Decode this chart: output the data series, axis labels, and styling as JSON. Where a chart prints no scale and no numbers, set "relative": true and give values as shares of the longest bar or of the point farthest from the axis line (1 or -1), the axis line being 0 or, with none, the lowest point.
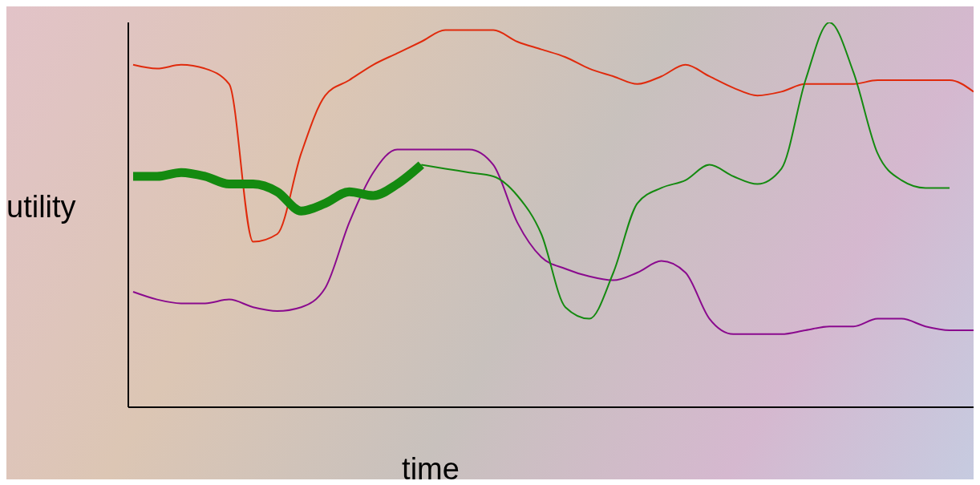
{
  "chart_data": {
    "type": "line",
    "relative": true,
    "xlabel": "time",
    "ylabel": "utility",
    "grid": false,
    "marker": "none",
    "line_style": "solid",
    "categories": [
      null,
      null,
      null,
      null,
      null,
      null,
      null,
      null,
      null,
      null,
      null,
      null,
      null,
      null,
      null,
      null,
      null,
      null,
      null,
      null,
      null,
      null,
      null,
      null,
      null,
      null,
      null,
      null,
      null,
      null,
      null,
      null,
      null,
      null,
      null,
      null
    ],
    "series": [
      {
        "color": "#e02a0c",
        "values": [
          0.89,
          0.88,
          0.89,
          0.88,
          0.84,
          0.43,
          0.45,
          0.66,
          0.81,
          0.85,
          0.89,
          0.92,
          0.95,
          0.98,
          0.98,
          0.98,
          0.95,
          0.93,
          0.91,
          0.88,
          0.86,
          0.84,
          0.86,
          0.89,
          0.86,
          0.83,
          0.81,
          0.82,
          0.84,
          0.84,
          0.84,
          0.85,
          0.85,
          0.85,
          0.85,
          0.82
        ]
      },
      {
        "color": "#8a0a8e",
        "values": [
          0.3,
          0.28,
          0.27,
          0.27,
          0.28,
          0.26,
          0.25,
          0.26,
          0.31,
          0.48,
          0.61,
          0.67,
          0.67,
          0.67,
          0.67,
          0.63,
          0.48,
          0.39,
          0.36,
          0.34,
          0.33,
          0.35,
          0.38,
          0.35,
          0.23,
          0.19,
          0.19,
          0.19,
          0.2,
          0.21,
          0.21,
          0.23,
          0.23,
          0.21,
          0.2,
          0.2
        ]
      },
      {
        "color": "#148a10",
        "values": [
          null,
          null,
          null,
          null,
          null,
          null,
          null,
          null,
          null,
          null,
          null,
          null,
          0.63,
          0.62,
          0.61,
          0.6,
          0.55,
          0.45,
          0.26,
          0.23,
          0.35,
          0.53,
          0.57,
          0.59,
          0.63,
          0.6,
          0.58,
          0.62,
          0.85,
          1,
          0.87,
          0.66,
          0.59,
          0.57,
          0.57,
          null
        ]
      },
      {
        "color": "#148a10",
        "values": [
          0.6,
          0.6,
          0.61,
          0.6,
          0.58,
          0.58,
          0.56,
          0.51,
          0.53,
          0.56,
          0.55,
          0.58,
          0.63,
          null,
          null,
          null,
          null,
          null,
          null,
          null,
          null,
          null,
          null,
          null,
          null,
          null,
          null,
          null,
          null,
          null,
          null,
          null,
          null,
          null,
          null,
          null
        ]
      }
    ]
  }
}
